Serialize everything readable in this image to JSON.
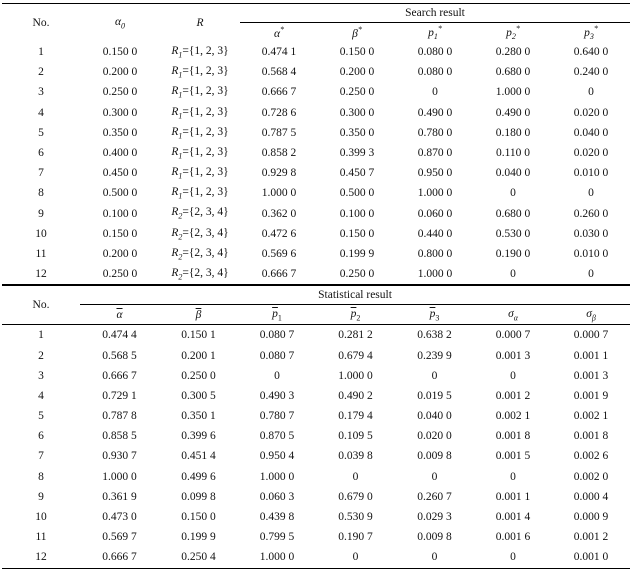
{
  "table1": {
    "col_no": "No.",
    "col_alpha0": "α0",
    "col_R": "R",
    "group": "Search result",
    "sub_headers": [
      "α*",
      "β*",
      "p1*",
      "p2*",
      "p3*"
    ],
    "rows": [
      [
        "1",
        "0.150 0",
        "R1={1, 2, 3}",
        "0.474 1",
        "0.150 0",
        "0.080 0",
        "0.280 0",
        "0.640 0"
      ],
      [
        "2",
        "0.200 0",
        "R1={1, 2, 3}",
        "0.568 4",
        "0.200 0",
        "0.080 0",
        "0.680 0",
        "0.240 0"
      ],
      [
        "3",
        "0.250 0",
        "R1={1, 2, 3}",
        "0.666 7",
        "0.250 0",
        "0",
        "1.000 0",
        "0"
      ],
      [
        "4",
        "0.300 0",
        "R1={1, 2, 3}",
        "0.728 6",
        "0.300 0",
        "0.490 0",
        "0.490 0",
        "0.020 0"
      ],
      [
        "5",
        "0.350 0",
        "R1={1, 2, 3}",
        "0.787 5",
        "0.350 0",
        "0.780 0",
        "0.180 0",
        "0.040 0"
      ],
      [
        "6",
        "0.400 0",
        "R1={1, 2, 3}",
        "0.858 2",
        "0.399 3",
        "0.870 0",
        "0.110 0",
        "0.020 0"
      ],
      [
        "7",
        "0.450 0",
        "R1={1, 2, 3}",
        "0.929 8",
        "0.450 7",
        "0.950 0",
        "0.040 0",
        "0.010 0"
      ],
      [
        "8",
        "0.500 0",
        "R1={1, 2, 3}",
        "1.000 0",
        "0.500 0",
        "1.000 0",
        "0",
        "0"
      ],
      [
        "9",
        "0.100 0",
        "R2={2, 3, 4}",
        "0.362 0",
        "0.100 0",
        "0.060 0",
        "0.680 0",
        "0.260 0"
      ],
      [
        "10",
        "0.150 0",
        "R2={2, 3, 4}",
        "0.472 6",
        "0.150 0",
        "0.440 0",
        "0.530 0",
        "0.030 0"
      ],
      [
        "11",
        "0.200 0",
        "R2={2, 3, 4}",
        "0.569 6",
        "0.199 9",
        "0.800 0",
        "0.190 0",
        "0.010 0"
      ],
      [
        "12",
        "0.250 0",
        "R2={2, 3, 4}",
        "0.666 7",
        "0.250 0",
        "1.000 0",
        "0",
        "0"
      ]
    ]
  },
  "table2": {
    "col_no": "No.",
    "group": "Statistical result",
    "sub_headers": [
      "α",
      "β",
      "p1",
      "p2",
      "p3",
      "σα",
      "σβ"
    ],
    "rows": [
      [
        "1",
        "0.474 4",
        "0.150 1",
        "0.080 7",
        "0.281 2",
        "0.638 2",
        "0.000 7",
        "0.000 7"
      ],
      [
        "2",
        "0.568 5",
        "0.200 1",
        "0.080 7",
        "0.679 4",
        "0.239 9",
        "0.001 3",
        "0.001 1"
      ],
      [
        "3",
        "0.666 7",
        "0.250 0",
        "0",
        "1.000 0",
        "0",
        "0",
        "0.001 3"
      ],
      [
        "4",
        "0.729 1",
        "0.300 5",
        "0.490 3",
        "0.490 2",
        "0.019 5",
        "0.001 2",
        "0.001 9"
      ],
      [
        "5",
        "0.787 8",
        "0.350 1",
        "0.780 7",
        "0.179 4",
        "0.040 0",
        "0.002 1",
        "0.002 1"
      ],
      [
        "6",
        "0.858 5",
        "0.399 6",
        "0.870 5",
        "0.109 5",
        "0.020 0",
        "0.001 8",
        "0.001 8"
      ],
      [
        "7",
        "0.930 7",
        "0.451 4",
        "0.950 4",
        "0.039 8",
        "0.009 8",
        "0.001 5",
        "0.002 6"
      ],
      [
        "8",
        "1.000 0",
        "0.499 6",
        "1.000 0",
        "0",
        "0",
        "0",
        "0.002 0"
      ],
      [
        "9",
        "0.361 9",
        "0.099 8",
        "0.060 3",
        "0.679 0",
        "0.260 7",
        "0.001 1",
        "0.000 4"
      ],
      [
        "10",
        "0.473 0",
        "0.150 0",
        "0.439 8",
        "0.530 9",
        "0.029 3",
        "0.001 4",
        "0.000 9"
      ],
      [
        "11",
        "0.569 7",
        "0.199 9",
        "0.799 5",
        "0.190 7",
        "0.009 8",
        "0.001 6",
        "0.001 2"
      ],
      [
        "12",
        "0.666 7",
        "0.250 4",
        "1.000 0",
        "0",
        "0",
        "0",
        "0.001 0"
      ]
    ]
  }
}
